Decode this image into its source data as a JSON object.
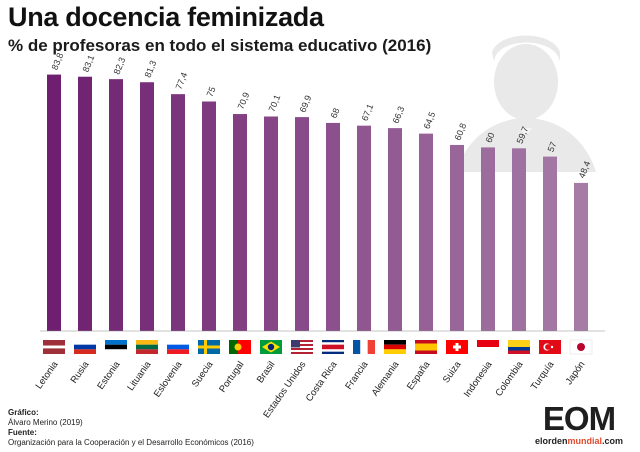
{
  "title": "Una docencia feminizada",
  "subtitle": "% de profesoras en todo el sistema educativo (2016)",
  "credits": {
    "grafico_label": "Gráfico:",
    "grafico_value": "Álvaro Merino (2019)",
    "fuente_label": "Fuente:",
    "fuente_value": "Organización para la Cooperación y el Desarrollo Económicos (2016)"
  },
  "brand": {
    "logo_text": "EOM",
    "url_prefix": "elorden",
    "url_mid": "mundial",
    "url_suffix": ".com"
  },
  "chart_data": {
    "type": "bar",
    "title": "Una docencia feminizada",
    "subtitle": "% de profesoras en todo el sistema educativo (2016)",
    "categories": [
      "Letonia",
      "Rusia",
      "Estonia",
      "Lituania",
      "Eslovenia",
      "Suecia",
      "Portugal",
      "Brasil",
      "Estados Unidos",
      "Costa Rica",
      "Francia",
      "Alemania",
      "España",
      "Suiza",
      "Indonesia",
      "Colombia",
      "Turquía",
      "Japón"
    ],
    "values": [
      83.8,
      83.1,
      82.3,
      81.3,
      77.4,
      75,
      70.9,
      70.1,
      69.9,
      68,
      67.1,
      66.3,
      64.5,
      60.8,
      60,
      59.7,
      57,
      48.4
    ],
    "value_labels": [
      "83,8",
      "83,1",
      "82,3",
      "81,3",
      "77,4",
      "75",
      "70,9",
      "70,1",
      "69,9",
      "68",
      "67,1",
      "66,3",
      "64,5",
      "60,8",
      "60",
      "59,7",
      "57",
      "48,4"
    ],
    "ylim": [
      0,
      100
    ],
    "grid": false,
    "legend": "none",
    "bar_color_start": "#6e1f6f",
    "bar_color_end": "#a67ca6",
    "flags": [
      {
        "kind": "h",
        "colors": [
          "#9e3039",
          "#ffffff",
          "#9e3039"
        ],
        "weights": [
          2,
          1,
          2
        ]
      },
      {
        "kind": "h",
        "colors": [
          "#ffffff",
          "#0039a6",
          "#d52b1e"
        ]
      },
      {
        "kind": "h",
        "colors": [
          "#0072ce",
          "#000000",
          "#ffffff"
        ]
      },
      {
        "kind": "h",
        "colors": [
          "#fdb913",
          "#006a44",
          "#c1272d"
        ]
      },
      {
        "kind": "h",
        "colors": [
          "#ffffff",
          "#005ce5",
          "#ed1c24"
        ]
      },
      {
        "kind": "sweden"
      },
      {
        "kind": "portugal"
      },
      {
        "kind": "brazil"
      },
      {
        "kind": "usa"
      },
      {
        "kind": "h",
        "colors": [
          "#002b7f",
          "#ffffff",
          "#ce1126",
          "#ffffff",
          "#002b7f"
        ],
        "weights": [
          1,
          1,
          2,
          1,
          1
        ]
      },
      {
        "kind": "v",
        "colors": [
          "#0055a4",
          "#ffffff",
          "#ef4135"
        ]
      },
      {
        "kind": "h",
        "colors": [
          "#000000",
          "#dd0000",
          "#ffce00"
        ]
      },
      {
        "kind": "h",
        "colors": [
          "#c60b1e",
          "#ffc400",
          "#c60b1e"
        ],
        "weights": [
          1,
          2,
          1
        ]
      },
      {
        "kind": "swiss"
      },
      {
        "kind": "h",
        "colors": [
          "#e70011",
          "#ffffff"
        ]
      },
      {
        "kind": "h",
        "colors": [
          "#fcd116",
          "#003893",
          "#ce1126"
        ],
        "weights": [
          2,
          1,
          1
        ]
      },
      {
        "kind": "turkey"
      },
      {
        "kind": "japan"
      }
    ]
  }
}
